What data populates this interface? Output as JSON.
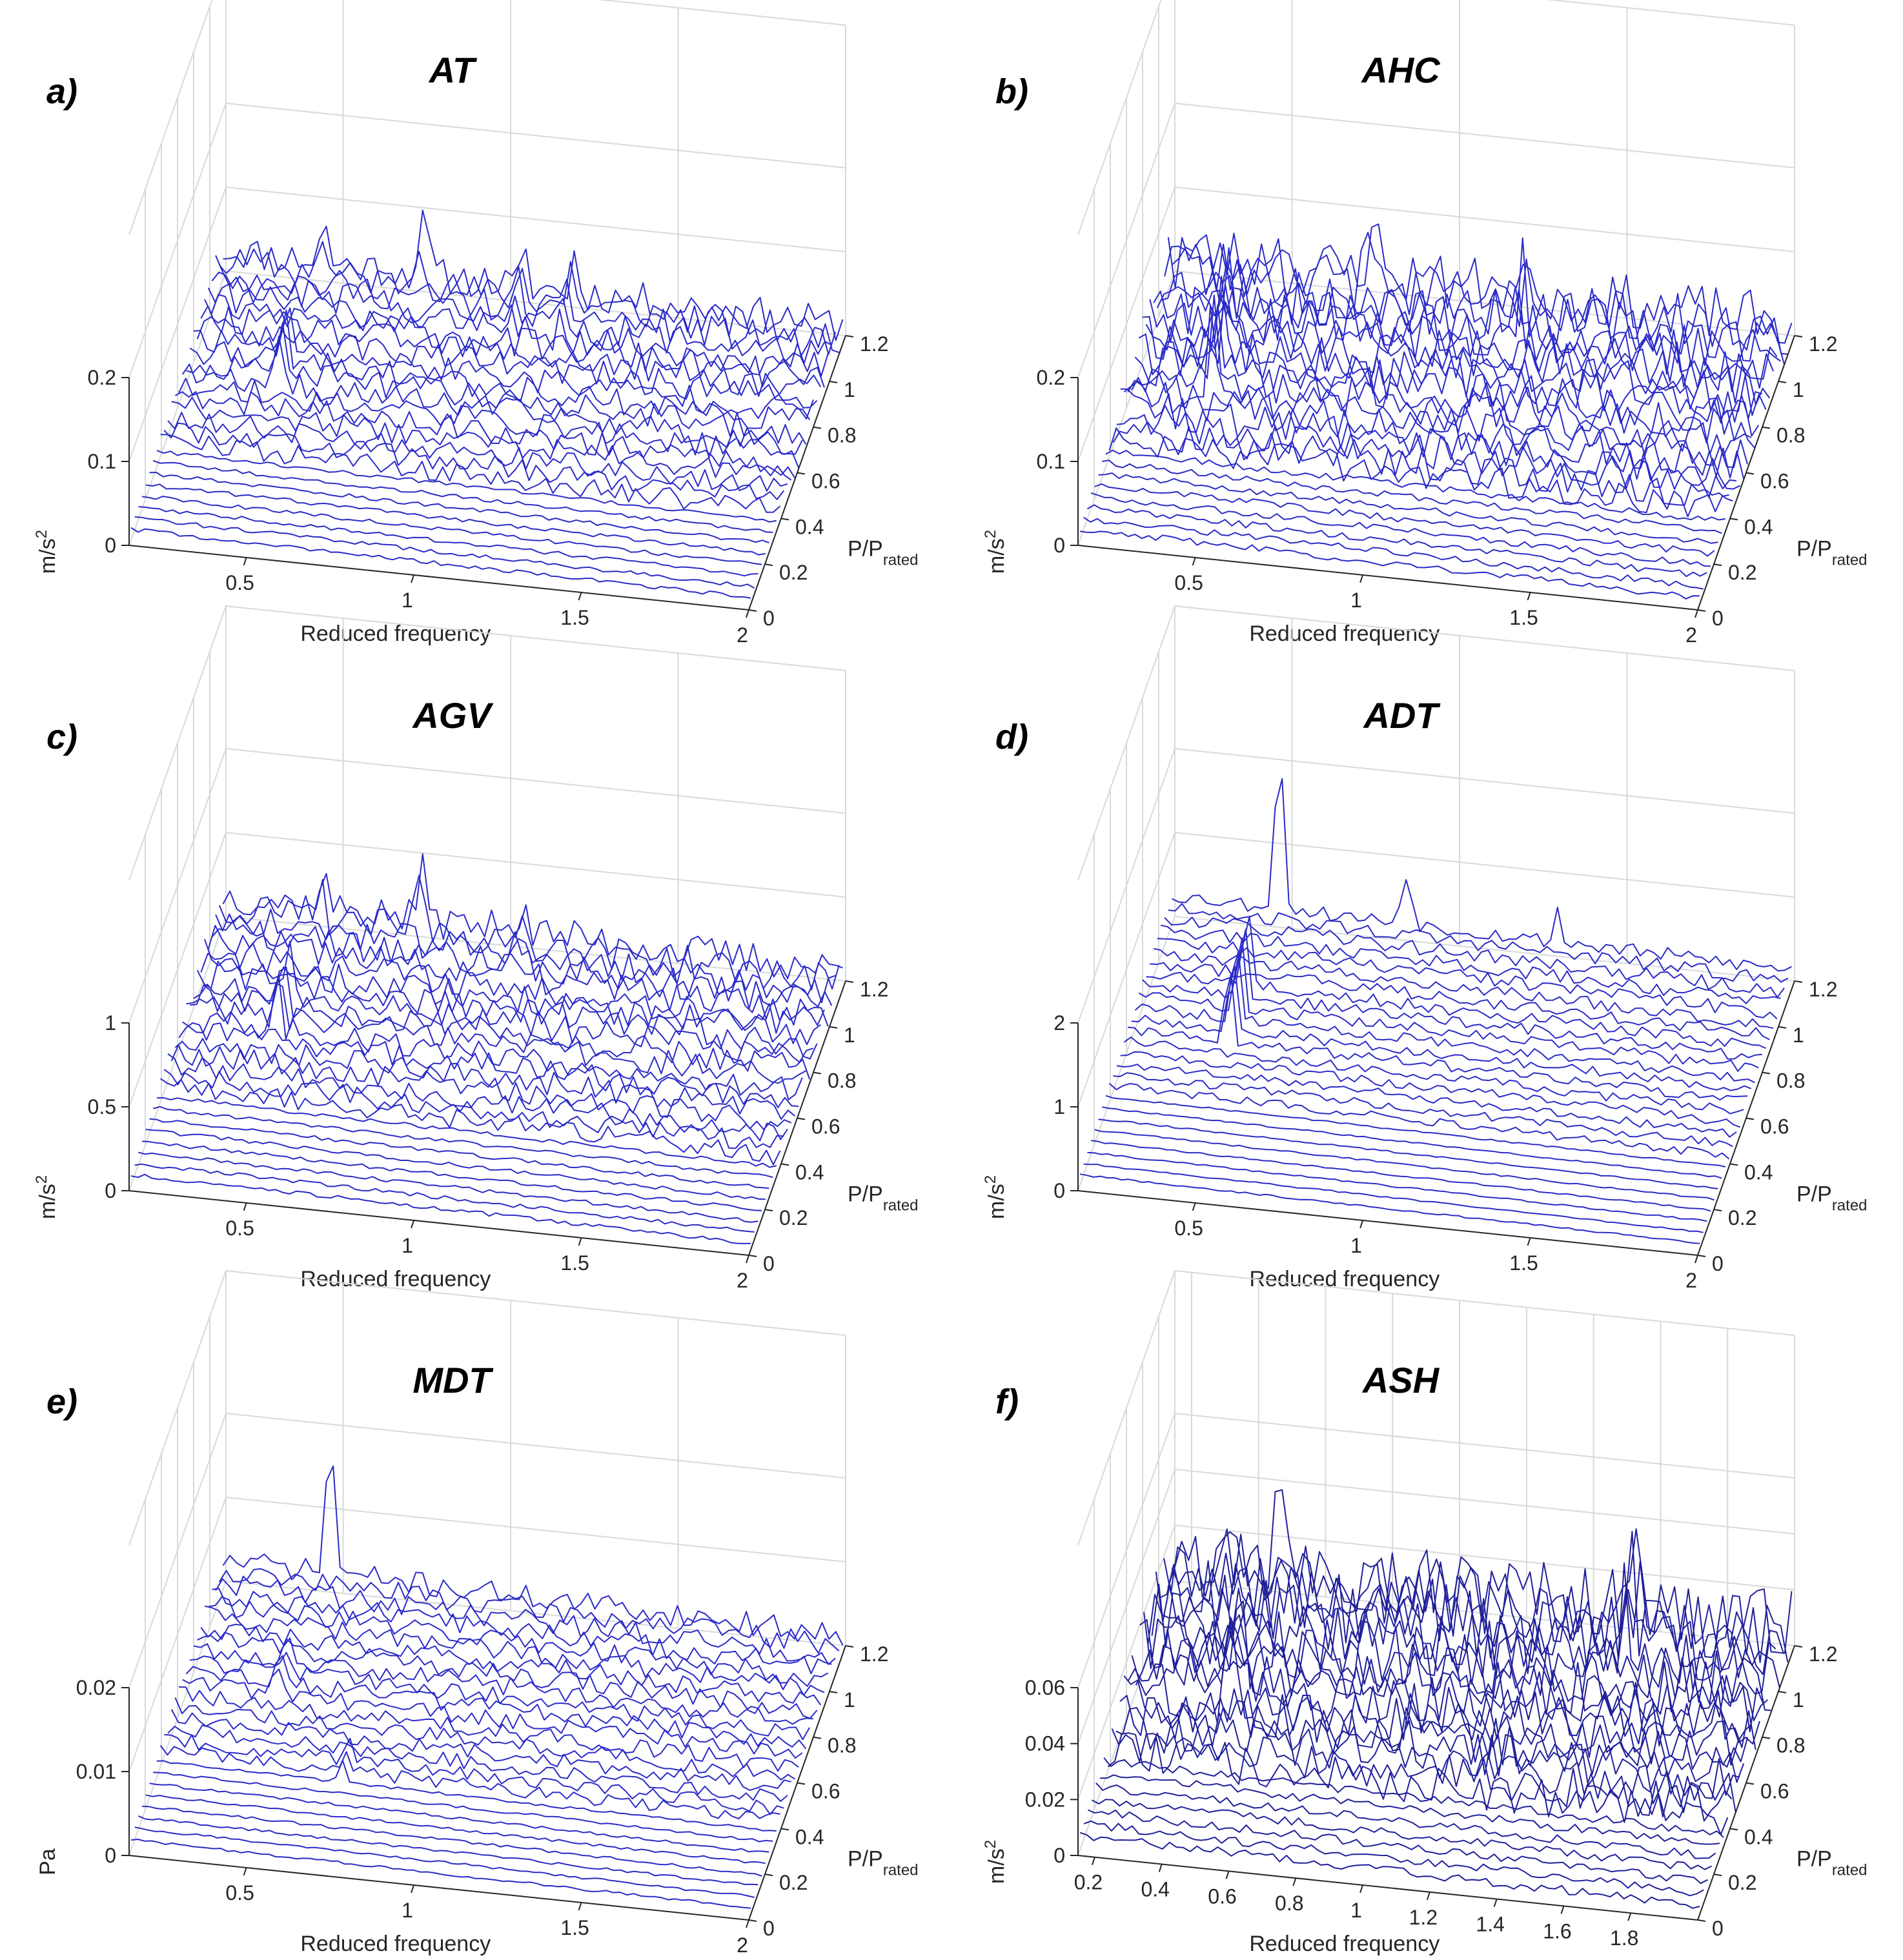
{
  "colors": {
    "trace": "#2b2bc8",
    "trace_dark": "#20209a",
    "grid": "#d9d9d9",
    "axis": "#262626"
  },
  "chart_data": [
    {
      "type": "waterfall",
      "letter": "a)",
      "title": "AT",
      "xlabel": "Reduced frequency",
      "ylabel_main": "P/P",
      "ylabel_sub": "rated",
      "zlabel_main": "m/s",
      "zlabel_sup": "2",
      "xlim": [
        0.15,
        2.0
      ],
      "xticks": [
        0.5,
        1,
        1.5,
        2
      ],
      "xtick_labels": [
        "0.5",
        "1",
        "1.5",
        "2"
      ],
      "ylim": [
        0,
        1.2
      ],
      "yticks": [
        0,
        0.2,
        0.4,
        0.6,
        0.8,
        1,
        1.2
      ],
      "ytick_labels": [
        "0",
        "0.2",
        "0.4",
        "0.6",
        "0.8",
        "1",
        "1.2"
      ],
      "zlim": [
        0,
        0.2
      ],
      "zticks": [
        0,
        0.1,
        0.2
      ],
      "ztick_labels": [
        "0",
        "0.1",
        "0.2"
      ],
      "n_traces": 26,
      "baseline": 0.02,
      "noise": 0.012,
      "seed": 11,
      "peaks": [
        {
          "f": 0.43,
          "p_from": 0.62,
          "p_to": 0.8,
          "height": 0.09,
          "width": 0.012
        },
        {
          "f": 0.45,
          "p_from": 1.1,
          "p_to": 1.2,
          "height": 0.05,
          "width": 0.015
        },
        {
          "f": 0.75,
          "p_from": 1.1,
          "p_to": 1.2,
          "height": 0.06,
          "width": 0.02
        },
        {
          "f": 1.05,
          "p_from": 0.95,
          "p_to": 1.2,
          "height": 0.04,
          "width": 0.012
        },
        {
          "f": 1.2,
          "p_from": 0.95,
          "p_to": 1.2,
          "height": 0.045,
          "width": 0.012
        }
      ]
    },
    {
      "type": "waterfall",
      "letter": "b)",
      "title": "AHC",
      "xlabel": "Reduced frequency",
      "ylabel_main": "P/P",
      "ylabel_sub": "rated",
      "zlabel_main": "m/s",
      "zlabel_sup": "2",
      "xlim": [
        0.15,
        2.0
      ],
      "xticks": [
        0.5,
        1,
        1.5,
        2
      ],
      "xtick_labels": [
        "0.5",
        "1",
        "1.5",
        "2"
      ],
      "ylim": [
        0,
        1.2
      ],
      "yticks": [
        0,
        0.2,
        0.4,
        0.6,
        0.8,
        1,
        1.2
      ],
      "ytick_labels": [
        "0",
        "0.2",
        "0.4",
        "0.6",
        "0.8",
        "1",
        "1.2"
      ],
      "zlim": [
        0,
        0.2
      ],
      "zticks": [
        0,
        0.1,
        0.2
      ],
      "ztick_labels": [
        "0",
        "0.1",
        "0.2"
      ],
      "n_traces": 26,
      "baseline": 0.02,
      "noise": 0.02,
      "seed": 23,
      "peaks": [
        {
          "f": 0.4,
          "p_from": 0.6,
          "p_to": 0.85,
          "height": 0.1,
          "width": 0.012
        },
        {
          "f": 0.47,
          "p_from": 1.1,
          "p_to": 1.2,
          "height": 0.06,
          "width": 0.012
        },
        {
          "f": 0.75,
          "p_from": 1.1,
          "p_to": 1.2,
          "height": 0.07,
          "width": 0.02
        },
        {
          "f": 1.22,
          "p_from": 0.95,
          "p_to": 1.2,
          "height": 0.06,
          "width": 0.012
        }
      ]
    },
    {
      "type": "waterfall",
      "letter": "c)",
      "title": "AGV",
      "xlabel": "Reduced frequency",
      "ylabel_main": "P/P",
      "ylabel_sub": "rated",
      "zlabel_main": "m/s",
      "zlabel_sup": "2",
      "xlim": [
        0.15,
        2.0
      ],
      "xticks": [
        0.5,
        1,
        1.5,
        2
      ],
      "xtick_labels": [
        "0.5",
        "1",
        "1.5",
        "2"
      ],
      "ylim": [
        0,
        1.2
      ],
      "yticks": [
        0,
        0.2,
        0.4,
        0.6,
        0.8,
        1,
        1.2
      ],
      "ytick_labels": [
        "0",
        "0.2",
        "0.4",
        "0.6",
        "0.8",
        "1",
        "1.2"
      ],
      "zlim": [
        0,
        1
      ],
      "zticks": [
        0,
        0.5,
        1
      ],
      "ztick_labels": [
        "0",
        "0.5",
        "1"
      ],
      "n_traces": 26,
      "baseline": 0.1,
      "noise": 0.06,
      "seed": 37,
      "peaks": [
        {
          "f": 0.43,
          "p_from": 0.62,
          "p_to": 0.82,
          "height": 0.4,
          "width": 0.012
        },
        {
          "f": 0.45,
          "p_from": 1.1,
          "p_to": 1.2,
          "height": 0.2,
          "width": 0.015
        },
        {
          "f": 0.75,
          "p_from": 1.1,
          "p_to": 1.2,
          "height": 0.3,
          "width": 0.02
        },
        {
          "f": 1.05,
          "p_from": 0.95,
          "p_to": 1.2,
          "height": 0.2,
          "width": 0.012
        }
      ]
    },
    {
      "type": "waterfall",
      "letter": "d)",
      "title": "ADT",
      "xlabel": "Reduced frequency",
      "ylabel_main": "P/P",
      "ylabel_sub": "rated",
      "zlabel_main": "m/s",
      "zlabel_sup": "2",
      "xlim": [
        0.15,
        2.0
      ],
      "xticks": [
        0.5,
        1,
        1.5,
        2
      ],
      "xtick_labels": [
        "0.5",
        "1",
        "1.5",
        "2"
      ],
      "ylim": [
        0,
        1.2
      ],
      "yticks": [
        0,
        0.2,
        0.4,
        0.6,
        0.8,
        1,
        1.2
      ],
      "ytick_labels": [
        "0",
        "0.2",
        "0.4",
        "0.6",
        "0.8",
        "1",
        "1.2"
      ],
      "zlim": [
        0,
        2
      ],
      "zticks": [
        0,
        1,
        2
      ],
      "ztick_labels": [
        "0",
        "1",
        "2"
      ],
      "n_traces": 26,
      "baseline": 0.2,
      "noise": 0.05,
      "seed": 53,
      "peaks": [
        {
          "f": 0.45,
          "p_from": 0.6,
          "p_to": 0.85,
          "height": 1.3,
          "width": 0.012
        },
        {
          "f": 0.47,
          "p_from": 1.15,
          "p_to": 1.2,
          "height": 1.9,
          "width": 0.018
        },
        {
          "f": 0.85,
          "p_from": 1.15,
          "p_to": 1.2,
          "height": 0.6,
          "width": 0.02
        },
        {
          "f": 1.3,
          "p_from": 1.15,
          "p_to": 1.2,
          "height": 0.4,
          "width": 0.012
        }
      ]
    },
    {
      "type": "waterfall",
      "letter": "e)",
      "title": "MDT",
      "xlabel": "Reduced frequency",
      "ylabel_main": "P/P",
      "ylabel_sub": "rated",
      "zlabel_main": "Pa",
      "zlabel_sup": "",
      "xlim": [
        0.15,
        2.0
      ],
      "xticks": [
        0.5,
        1,
        1.5,
        2
      ],
      "xtick_labels": [
        "0.5",
        "1",
        "1.5",
        "2"
      ],
      "ylim": [
        0,
        1.2
      ],
      "yticks": [
        0,
        0.2,
        0.4,
        0.6,
        0.8,
        1,
        1.2
      ],
      "ytick_labels": [
        "0",
        "0.2",
        "0.4",
        "0.6",
        "0.8",
        "1",
        "1.2"
      ],
      "zlim": [
        0,
        0.02
      ],
      "zticks": [
        0,
        0.01,
        0.02
      ],
      "ztick_labels": [
        "0",
        "0.01",
        "0.02"
      ],
      "n_traces": 26,
      "baseline": 0.002,
      "noise": 0.0008,
      "seed": 71,
      "peaks": [
        {
          "f": 0.43,
          "p_from": 0.65,
          "p_to": 0.8,
          "height": 0.005,
          "width": 0.012
        },
        {
          "f": 0.47,
          "p_from": 1.15,
          "p_to": 1.2,
          "height": 0.016,
          "width": 0.018
        },
        {
          "f": 0.7,
          "p_from": 0.3,
          "p_to": 0.45,
          "height": 0.003,
          "width": 0.012
        }
      ]
    },
    {
      "type": "waterfall",
      "letter": "f)",
      "title": "ASH",
      "xlabel": "Reduced frequency",
      "ylabel_main": "P/P",
      "ylabel_sub": "rated",
      "zlabel_main": "m/s",
      "zlabel_sup": "2",
      "xlim": [
        0.15,
        2.0
      ],
      "xticks": [
        0.2,
        0.4,
        0.6,
        0.8,
        1,
        1.2,
        1.4,
        1.6,
        1.8
      ],
      "xtick_labels": [
        "0.2",
        "0.4",
        "0.6",
        "0.8",
        "1",
        "1.2",
        "1.4",
        "1.6",
        "1.8"
      ],
      "ylim": [
        0,
        1.2
      ],
      "yticks": [
        0,
        0.2,
        0.4,
        0.6,
        0.8,
        1,
        1.2
      ],
      "ytick_labels": [
        "0",
        "0.2",
        "0.4",
        "0.6",
        "0.8",
        "1",
        "1.2"
      ],
      "zlim": [
        0,
        0.06
      ],
      "zticks": [
        0,
        0.02,
        0.04,
        0.06
      ],
      "ztick_labels": [
        "0",
        "0.02",
        "0.04",
        "0.06"
      ],
      "n_traces": 24,
      "baseline": 0.008,
      "noise": 0.008,
      "seed": 97,
      "peaks": [
        {
          "f": 0.45,
          "p_from": 0.6,
          "p_to": 0.8,
          "height": 0.03,
          "width": 0.012
        },
        {
          "f": 0.47,
          "p_from": 1.15,
          "p_to": 1.2,
          "height": 0.035,
          "width": 0.015
        },
        {
          "f": 1.55,
          "p_from": 0.95,
          "p_to": 1.2,
          "height": 0.025,
          "width": 0.012
        }
      ]
    }
  ]
}
